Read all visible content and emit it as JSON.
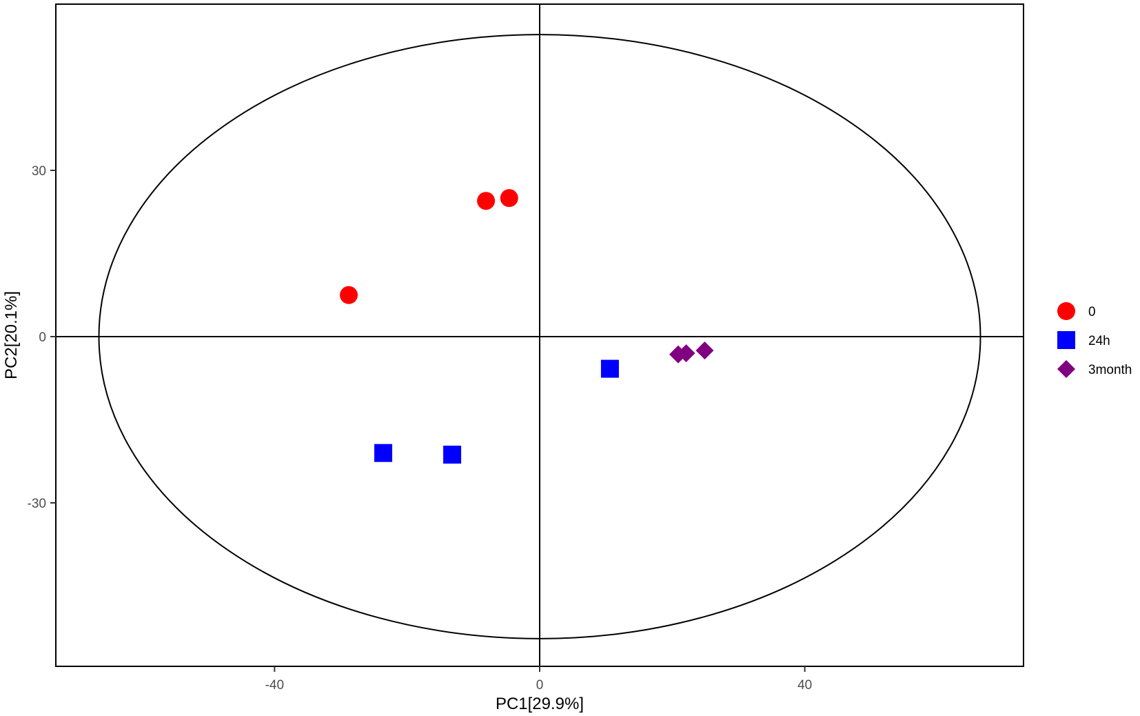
{
  "chart_data": {
    "type": "scatter",
    "title": "",
    "xlabel": "PC1[29.9%]",
    "ylabel": "PC2[20.1%]",
    "xlim": [
      -73,
      73
    ],
    "ylim": [
      -59.5,
      60
    ],
    "xticks": [
      -40,
      0,
      40
    ],
    "xtick_labels": [
      "-40",
      "0",
      "40"
    ],
    "yticks": [
      30,
      0,
      -30
    ],
    "ytick_labels": [
      "30",
      "0",
      "-30"
    ],
    "grid": false,
    "reference_lines": {
      "x": 0,
      "y": 0
    },
    "ellipse": {
      "center": [
        0,
        0
      ],
      "semi_x": 66.5,
      "semi_y": 54.5
    },
    "legend_position": "right",
    "series": [
      {
        "name": "0",
        "marker": "circle",
        "color": "#ff0000",
        "points": [
          [
            -28.8,
            7.5
          ],
          [
            -8.1,
            24.5
          ],
          [
            -4.6,
            25.0
          ]
        ]
      },
      {
        "name": "24h",
        "marker": "square",
        "color": "#0000ff",
        "points": [
          [
            -23.6,
            -21.0
          ],
          [
            -13.2,
            -21.3
          ],
          [
            10.6,
            -5.8
          ]
        ]
      },
      {
        "name": "3month",
        "marker": "diamond",
        "color": "#800080",
        "points": [
          [
            20.9,
            -3.2
          ],
          [
            22.1,
            -3.0
          ],
          [
            24.9,
            -2.5
          ]
        ]
      }
    ]
  }
}
